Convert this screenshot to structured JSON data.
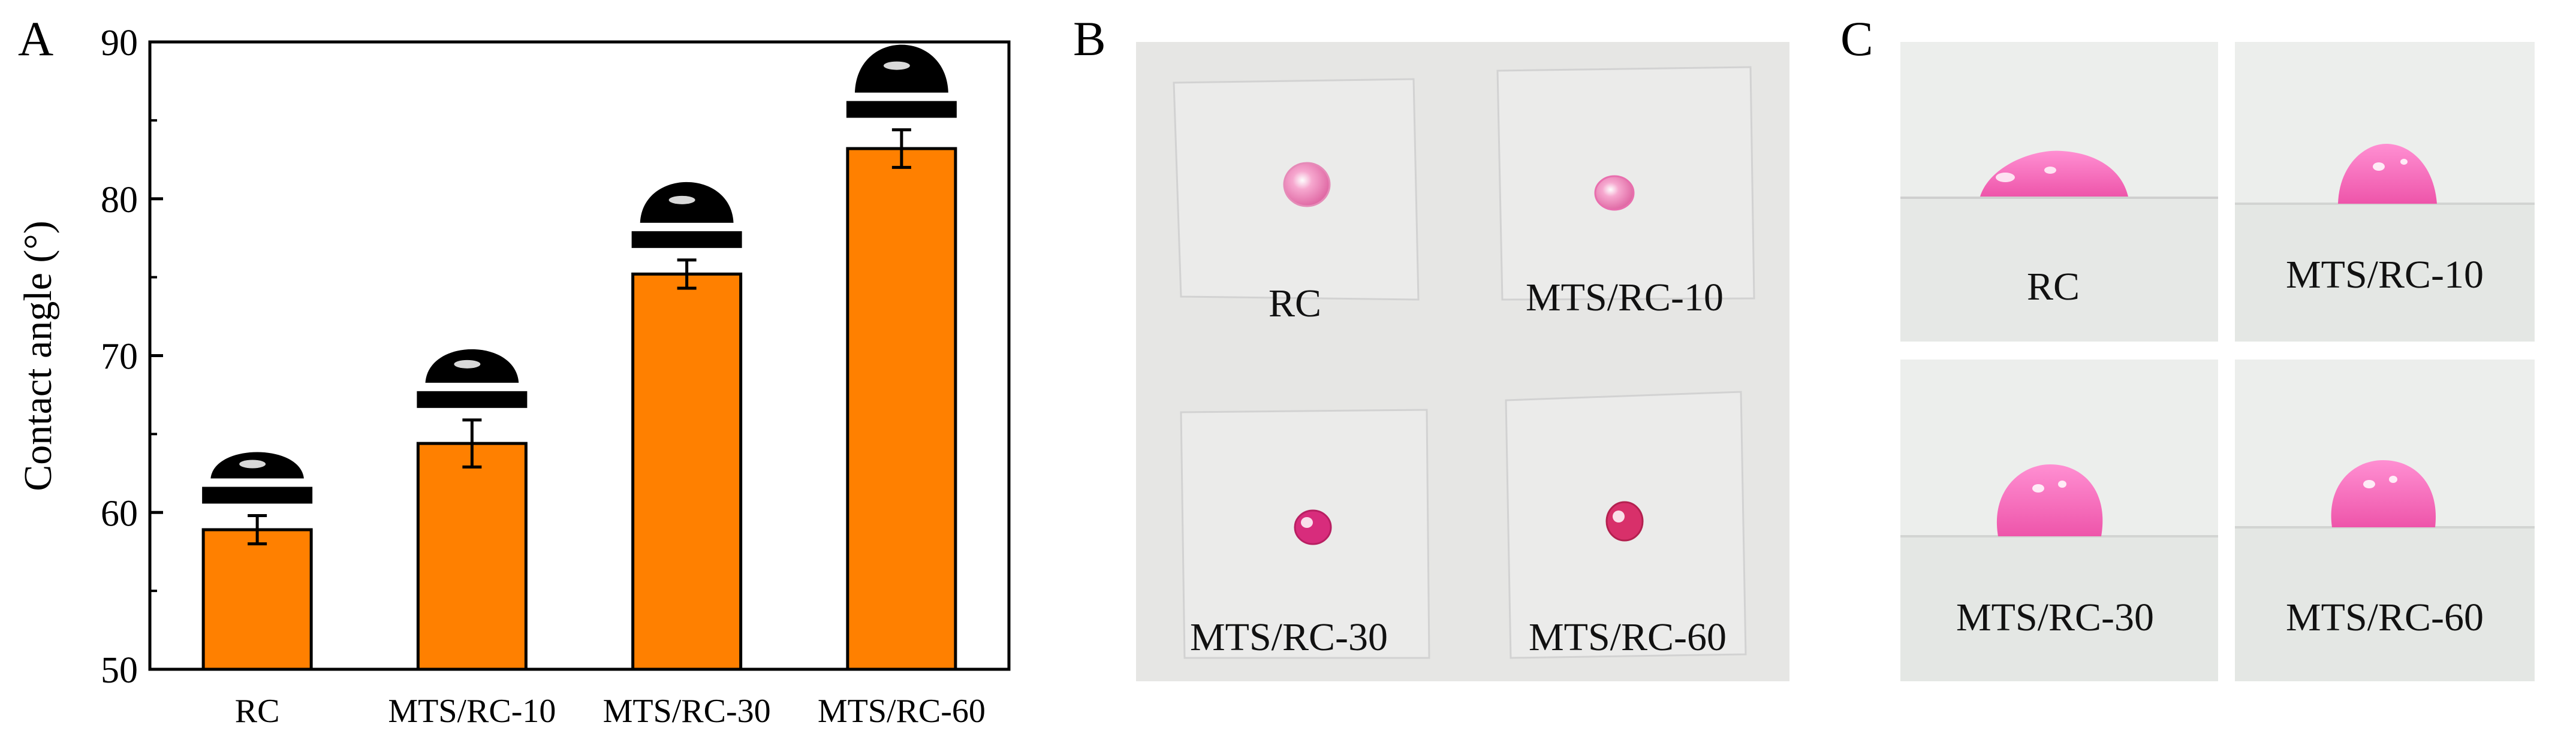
{
  "panels": {
    "a": "A",
    "b": "B",
    "c": "C"
  },
  "chart_data": {
    "type": "bar",
    "title": "",
    "xlabel": "",
    "ylabel": "Contact angle (°)",
    "ylim": [
      50,
      90
    ],
    "yticks": [
      50,
      60,
      70,
      80,
      90
    ],
    "categories": [
      "RC",
      "MTS/RC-10",
      "MTS/RC-30",
      "MTS/RC-60"
    ],
    "values": [
      58.9,
      64.4,
      75.2,
      83.2
    ],
    "errors": [
      0.9,
      1.5,
      0.9,
      1.2
    ],
    "bar_color": "#ff8000",
    "edge_color": "#000000"
  },
  "photo_b": {
    "background": "#e6e6e4",
    "samples": [
      {
        "label": "RC",
        "droplet_color": "#f4a6c8"
      },
      {
        "label": "MTS/RC-10",
        "droplet_color": "#f07ab8"
      },
      {
        "label": "MTS/RC-30",
        "droplet_color": "#d82c7c"
      },
      {
        "label": "MTS/RC-60",
        "droplet_color": "#d8306a"
      }
    ]
  },
  "photo_c": {
    "background": "#eceeec",
    "droplet_color": "#f36fc0",
    "samples": [
      {
        "label": "RC"
      },
      {
        "label": "MTS/RC-10"
      },
      {
        "label": "MTS/RC-30"
      },
      {
        "label": "MTS/RC-60"
      }
    ]
  }
}
